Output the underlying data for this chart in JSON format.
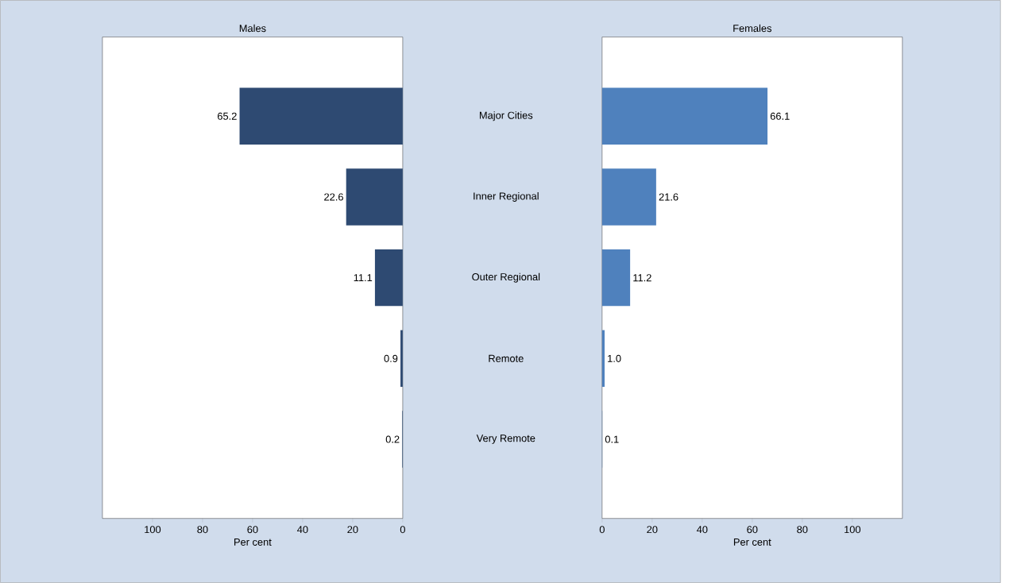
{
  "chart_data": [
    {
      "type": "bar",
      "orientation": "horizontal",
      "title": "Males",
      "xlabel": "Per cent",
      "categories": [
        "Major Cities",
        "Inner Regional",
        "Outer Regional",
        "Remote",
        "Very Remote"
      ],
      "series": [
        {
          "color": "#2e4a72",
          "values": [
            65.2,
            22.6,
            11.1,
            0.9,
            0.2
          ],
          "value_labels": [
            "65.2",
            "22.6",
            "11.1",
            "0.9",
            "0.2"
          ]
        }
      ],
      "xlim": [
        120,
        0
      ],
      "xticks": [
        100,
        80,
        60,
        40,
        20,
        0
      ]
    },
    {
      "type": "bar",
      "orientation": "horizontal",
      "title": "Females",
      "xlabel": "Per cent",
      "categories": [
        null,
        null,
        null,
        null,
        null
      ],
      "series": [
        {
          "color": "#4f81bd",
          "values": [
            66.1,
            21.6,
            11.2,
            1.0,
            0.1
          ],
          "value_labels": [
            "66.1",
            "21.6",
            "11.2",
            "1.0",
            "0.1"
          ]
        }
      ],
      "xlim": [
        0,
        120
      ],
      "xticks": [
        0,
        20,
        40,
        60,
        80,
        100
      ]
    }
  ]
}
